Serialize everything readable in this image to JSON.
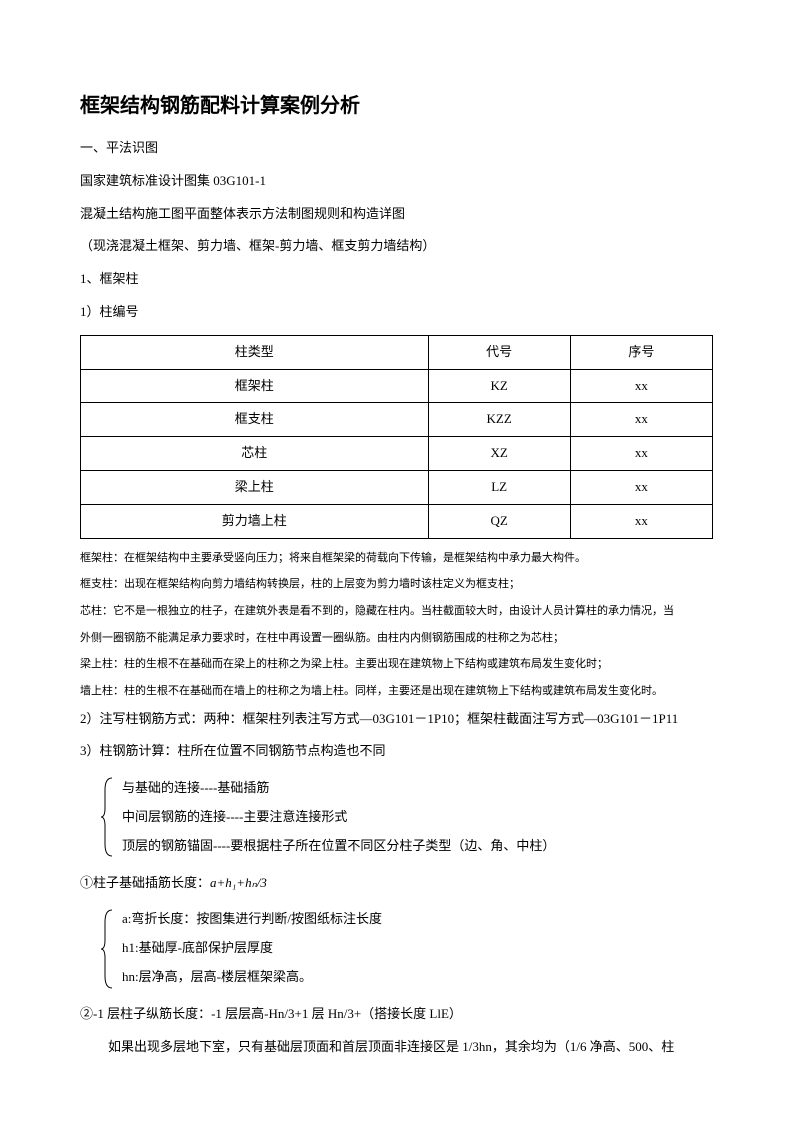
{
  "title": "框架结构钢筋配料计算案例分析",
  "p1": "一、平法识图",
  "p2": "国家建筑标准设计图集 03G101-1",
  "p3": "混凝土结构施工图平面整体表示方法制图规则和构造详图",
  "p4": "（现浇混凝土框架、剪力墙、框架-剪力墙、框支剪力墙结构）",
  "p5": "1、框架柱",
  "p6": "1）柱编号",
  "table": {
    "headers": [
      "柱类型",
      "代号",
      "序号"
    ],
    "rows": [
      [
        "框架柱",
        "KZ",
        "xx"
      ],
      [
        "框支柱",
        "KZZ",
        "xx"
      ],
      [
        "芯柱",
        "XZ",
        "xx"
      ],
      [
        "梁上柱",
        "LZ",
        "xx"
      ],
      [
        "剪力墙上柱",
        "QZ",
        "xx"
      ]
    ]
  },
  "note1": "框架柱：在框架结构中主要承受竖向压力；将来自框架梁的荷载向下传输，是框架结构中承力最大构件。",
  "note2": "框支柱：出现在框架结构向剪力墙结构转换层，柱的上层变为剪力墙时该柱定义为框支柱；",
  "note3": "芯柱：它不是一根独立的柱子，在建筑外表是看不到的，隐藏在柱内。当柱截面较大时，由设计人员计算柱的承力情况，当",
  "note3b": "外侧一圈钢筋不能满足承力要求时，在柱中再设置一圈纵筋。由柱内内侧钢筋围成的柱称之为芯柱；",
  "note4": "梁上柱：柱的生根不在基础而在梁上的柱称之为梁上柱。主要出现在建筑物上下结构或建筑布局发生变化时；",
  "note5": "墙上柱：柱的生根不在基础而在墙上的柱称之为墙上柱。同样，主要还是出现在建筑物上下结构或建筑布局发生变化时。",
  "p7": "2）注写柱钢筋方式：两种：框架柱列表注写方式—03G101－1P10；框架柱截面注写方式—03G101－1P11",
  "p8": "3）柱钢筋计算：柱所在位置不同钢筋节点构造也不同",
  "bracket1": {
    "l1": "与基础的连接----基础插筋",
    "l2": "中间层钢筋的连接----主要注意连接形式",
    "l3": "顶层的钢筋锚固----要根据柱子所在位置不同区分柱子类型（边、角、中柱）"
  },
  "p9a": "①柱子基础插筋长度：",
  "p9b": "a+h₁+hₙ/3",
  "bracket2": {
    "l1": "a:弯折长度：按图集进行判断/按图纸标注长度",
    "l2": "h1:基础厚-底部保护层厚度",
    "l3": "hn:层净高，层高-楼层框架梁高。"
  },
  "p10": "②-1 层柱子纵筋长度：-1 层层高-Hn/3+1 层 Hn/3+（搭接长度 LlE）",
  "p11": "如果出现多层地下室，只有基础层顶面和首层顶面非连接区是 1/3hn，其余均为（1/6 净高、500、柱"
}
